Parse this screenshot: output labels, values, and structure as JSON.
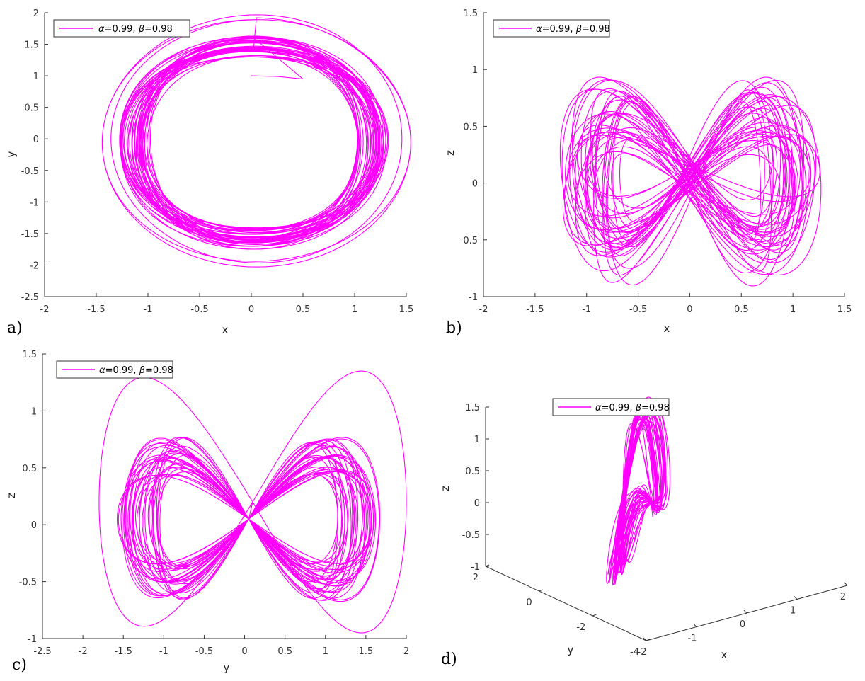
{
  "style": {
    "line_color": "#ff00ff",
    "axis_color": "#333333"
  },
  "chart_data": [
    {
      "panel_label": "a)",
      "type": "line",
      "kind": "phase-portrait",
      "legend": {
        "series": "α=0.99, β=0.98",
        "alpha": "α",
        "alpha_val": "=0.99, ",
        "beta": "β",
        "beta_val": "=0.98",
        "placement": "top-left"
      },
      "xlabel": "x",
      "ylabel": "y",
      "xlim": [
        -2,
        1.5
      ],
      "ylim": [
        -2.5,
        2
      ],
      "xticks": [
        -2,
        -1.5,
        -1,
        -0.5,
        0,
        0.5,
        1,
        1.5
      ],
      "yticks": [
        -2.5,
        -2,
        -1.5,
        -1,
        -0.5,
        0,
        0.5,
        1,
        1.5,
        2
      ],
      "x_tick_labels": [
        "-2",
        "-1.5",
        "-1",
        "-0.5",
        "0",
        "0.5",
        "1",
        "1.5"
      ],
      "y_tick_labels": [
        "-2.5",
        "-2",
        "-1.5",
        "-1",
        "-0.5",
        "0",
        "0.5",
        "1",
        "1.5",
        "2"
      ]
    },
    {
      "panel_label": "b)",
      "type": "line",
      "kind": "phase-portrait",
      "legend": {
        "series": "α=0.99, β=0.98",
        "alpha": "α",
        "alpha_val": "=0.99, ",
        "beta": "β",
        "beta_val": "=0.98",
        "placement": "top-left"
      },
      "xlabel": "x",
      "ylabel": "z",
      "xlim": [
        -2,
        1.5
      ],
      "ylim": [
        -1,
        1.5
      ],
      "xticks": [
        -2,
        -1.5,
        -1,
        -0.5,
        0,
        0.5,
        1,
        1.5
      ],
      "yticks": [
        -1,
        -0.5,
        0,
        0.5,
        1,
        1.5
      ],
      "x_tick_labels": [
        "-2",
        "-1.5",
        "-1",
        "-0.5",
        "0",
        "0.5",
        "1",
        "1.5"
      ],
      "y_tick_labels": [
        "-1",
        "-0.5",
        "0",
        "0.5",
        "1",
        "1.5"
      ]
    },
    {
      "panel_label": "c)",
      "type": "line",
      "kind": "phase-portrait",
      "legend": {
        "series": "α=0.99, β=0.98",
        "alpha": "α",
        "alpha_val": "=0.99, ",
        "beta": "β",
        "beta_val": "=0.98",
        "placement": "top-left"
      },
      "xlabel": "y",
      "ylabel": "z",
      "xlim": [
        -2.5,
        2
      ],
      "ylim": [
        -1,
        1.5
      ],
      "xticks": [
        -2.5,
        -2,
        -1.5,
        -1,
        -0.5,
        0,
        0.5,
        1,
        1.5,
        2
      ],
      "yticks": [
        -1,
        -0.5,
        0,
        0.5,
        1,
        1.5
      ],
      "x_tick_labels": [
        "-2.5",
        "-2",
        "-1.5",
        "-1",
        "-0.5",
        "0",
        "0.5",
        "1",
        "1.5",
        "2"
      ],
      "y_tick_labels": [
        "-1",
        "-0.5",
        "0",
        "0.5",
        "1",
        "1.5"
      ]
    },
    {
      "panel_label": "d)",
      "type": "line",
      "kind": "3d-phase-portrait",
      "legend": {
        "series": "α=0.99, β=0.98",
        "alpha": "α",
        "alpha_val": "=0.99, ",
        "beta": "β",
        "beta_val": "=0.98",
        "placement": "top-center"
      },
      "xlabel": "x",
      "ylabel": "y",
      "zlabel": "z",
      "xlim": [
        -2,
        2
      ],
      "ylim": [
        -4,
        2
      ],
      "zlim": [
        -1,
        1.5
      ],
      "xticks": [
        -2,
        -1,
        0,
        1,
        2
      ],
      "yticks": [
        -4,
        -2,
        0,
        2
      ],
      "zticks": [
        -1,
        -0.5,
        0,
        0.5,
        1,
        1.5
      ],
      "x_tick_labels": [
        "-2",
        "-1",
        "0",
        "1",
        "2"
      ],
      "y_tick_labels": [
        "-4",
        "-2",
        "0",
        "2"
      ],
      "z_tick_labels": [
        "-1",
        "-0.5",
        "0",
        "0.5",
        "1",
        "1.5"
      ]
    }
  ]
}
